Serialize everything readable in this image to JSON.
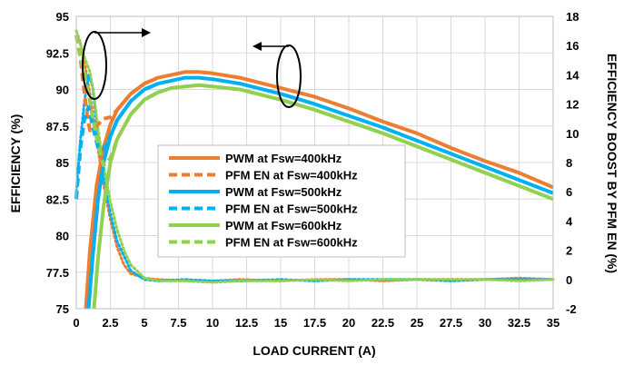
{
  "chart_data": {
    "type": "line",
    "title": "",
    "xlabel": "LOAD CURRENT (A)",
    "ylabel": "EFFICIENCY (%)",
    "y2label": "EFFICIENCY BOOST BY PFM EN (%)",
    "xlim": [
      0,
      35
    ],
    "ylim": [
      75,
      95
    ],
    "y2lim": [
      -2,
      18
    ],
    "grid": true,
    "legend_position": "center-left",
    "x_ticks": [
      "0",
      "2.5",
      "5",
      "7.5",
      "10",
      "12.5",
      "15",
      "17.5",
      "20",
      "22.5",
      "25",
      "27.5",
      "30",
      "32.5",
      "35"
    ],
    "y_ticks": [
      "75",
      "77.5",
      "80",
      "82.5",
      "85",
      "87.5",
      "90",
      "92.5",
      "95"
    ],
    "y2_ticks": [
      "-2",
      "0",
      "2",
      "4",
      "6",
      "8",
      "10",
      "12",
      "14",
      "16",
      "18"
    ],
    "series": [
      {
        "name": "PWM at Fsw=400kHz",
        "axis": "left",
        "style": "solid",
        "color": "#ED7D31",
        "x": [
          0.7,
          1,
          1.5,
          2,
          2.5,
          3,
          4,
          5,
          6,
          7,
          8,
          9,
          10,
          12,
          15,
          17.5,
          20,
          22.5,
          25,
          27.5,
          30,
          32.5,
          35
        ],
        "y": [
          75,
          79,
          83.5,
          86,
          87.6,
          88.6,
          89.7,
          90.4,
          90.8,
          91.0,
          91.2,
          91.2,
          91.1,
          90.8,
          90.1,
          89.5,
          88.7,
          87.8,
          87.0,
          86.0,
          85.1,
          84.3,
          83.3
        ]
      },
      {
        "name": "PFM EN at Fsw=400kHz",
        "axis": "left",
        "style": "dashed",
        "color": "#ED7D31",
        "x": [
          0,
          0.3,
          0.5,
          0.8,
          1,
          1.5,
          2,
          2.5,
          3,
          4,
          5,
          6
        ],
        "y": [
          93.7,
          92.2,
          90.5,
          88.2,
          87.2,
          87.5,
          88.0,
          88.1,
          88.6,
          89.7,
          90.4,
          90.8
        ]
      },
      {
        "name": "PWM at Fsw=500kHz",
        "axis": "left",
        "style": "solid",
        "color": "#00B0F0",
        "x": [
          0.9,
          1.2,
          1.6,
          2,
          2.5,
          3,
          4,
          5,
          6,
          7,
          8,
          9,
          10,
          12,
          15,
          17.5,
          20,
          22.5,
          25,
          27.5,
          30,
          32.5,
          35
        ],
        "y": [
          75,
          78.5,
          82.5,
          85,
          86.8,
          87.9,
          89.2,
          90.0,
          90.4,
          90.6,
          90.8,
          90.8,
          90.7,
          90.4,
          89.7,
          89.0,
          88.2,
          87.4,
          86.5,
          85.6,
          84.7,
          83.8,
          82.9
        ]
      },
      {
        "name": "PFM EN at Fsw=500kHz",
        "axis": "left",
        "style": "dashed",
        "color": "#00B0F0",
        "x": [
          0,
          0.3,
          0.6,
          0.9,
          1.2,
          1.6,
          2,
          2.5,
          3,
          4,
          5,
          6
        ],
        "y": [
          82.5,
          86.0,
          88.0,
          88.8,
          87.5,
          86.0,
          85.9,
          86.8,
          87.9,
          89.2,
          90.0,
          90.4
        ]
      },
      {
        "name": "PWM at Fsw=600kHz",
        "axis": "left",
        "style": "solid",
        "color": "#92D050",
        "x": [
          1.3,
          1.6,
          2,
          2.5,
          3,
          4,
          5,
          6,
          7,
          8,
          9,
          10,
          12,
          15,
          17.5,
          20,
          22.5,
          25,
          27.5,
          30,
          32.5,
          35
        ],
        "y": [
          75,
          78.5,
          82,
          85.0,
          86.6,
          88.3,
          89.3,
          89.8,
          90.1,
          90.2,
          90.3,
          90.2,
          90.0,
          89.3,
          88.6,
          87.8,
          87.0,
          86.1,
          85.2,
          84.3,
          83.4,
          82.5
        ]
      },
      {
        "name": "PFM EN at Fsw=600kHz",
        "axis": "left",
        "style": "dashed",
        "color": "#92D050",
        "x": [
          0,
          0.3,
          0.6,
          1,
          1.3,
          1.6,
          2,
          2.5,
          3,
          4,
          5,
          6
        ],
        "y": [
          93.7,
          92.3,
          91.0,
          89.2,
          87.6,
          86.2,
          84.8,
          85.3,
          86.6,
          88.3,
          89.3,
          89.8
        ]
      },
      {
        "name": "",
        "axis": "right",
        "style": "dotted",
        "color": "#ED7D31",
        "x": [
          0,
          0.3,
          0.6,
          1,
          1.5,
          2,
          2.5,
          3,
          3.5,
          4,
          5,
          6,
          8,
          10,
          12,
          15,
          17.5,
          20,
          22.5,
          25,
          27.5,
          30,
          32.5,
          35
        ],
        "y": [
          17.0,
          16.2,
          14.8,
          12.7,
          9.5,
          6.5,
          4.1,
          2.2,
          1.0,
          0.4,
          0.1,
          0.0,
          -0.1,
          -0.1,
          0.0,
          -0.1,
          0.0,
          0.0,
          -0.1,
          0.0,
          0.0,
          0.0,
          0.1,
          0.0
        ]
      },
      {
        "name": "",
        "axis": "right",
        "style": "dotted",
        "color": "#00B0F0",
        "x": [
          0,
          0.3,
          0.6,
          0.9,
          1.2,
          1.6,
          2,
          2.5,
          3,
          4,
          5,
          6,
          8,
          10,
          12,
          15,
          17.5,
          20,
          22.5,
          25,
          27.5,
          30,
          32.5,
          35
        ],
        "y": [
          6.0,
          9.5,
          12.2,
          14.0,
          13.2,
          9.8,
          7.0,
          4.5,
          2.6,
          0.6,
          0.0,
          -0.1,
          0.0,
          -0.1,
          -0.1,
          0.0,
          -0.1,
          0.0,
          0.0,
          0.0,
          -0.1,
          0.0,
          0.0,
          0.0
        ]
      },
      {
        "name": "",
        "axis": "right",
        "style": "dotted",
        "color": "#92D050",
        "x": [
          0,
          0.3,
          0.6,
          1,
          1.3,
          1.6,
          2,
          2.5,
          3,
          3.5,
          4,
          5,
          6,
          8,
          10,
          12,
          15,
          17.5,
          20,
          22.5,
          25,
          27.5,
          30,
          32.5,
          35
        ],
        "y": [
          17.0,
          16.1,
          15.2,
          14.2,
          12.6,
          10.3,
          7.8,
          5.3,
          3.4,
          2.0,
          1.0,
          0.1,
          -0.1,
          -0.1,
          -0.2,
          -0.1,
          -0.1,
          0.0,
          -0.1,
          0.0,
          0.0,
          0.0,
          0.0,
          -0.1,
          0.0
        ]
      }
    ]
  }
}
